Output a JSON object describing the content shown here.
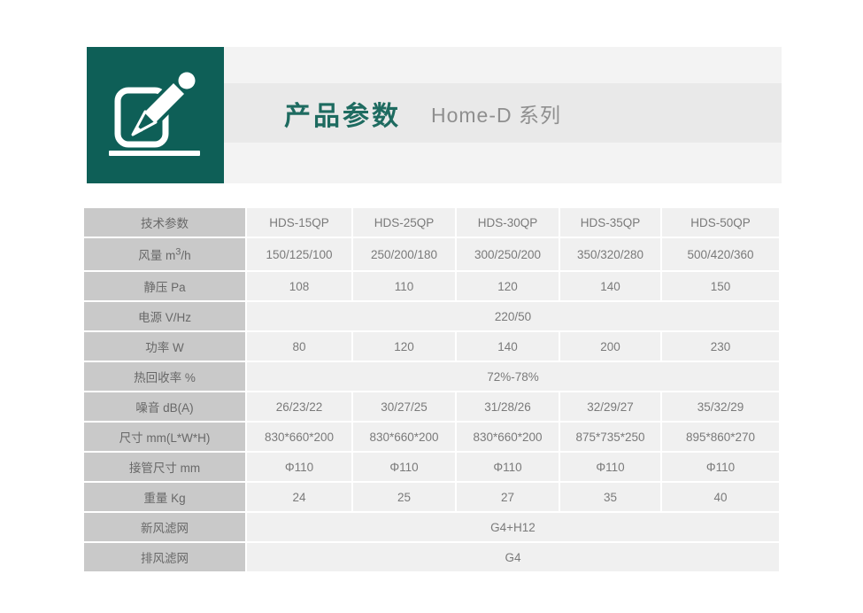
{
  "page": {
    "background": "#ffffff"
  },
  "header": {
    "icon": "edit-pencil-icon",
    "icon_tile_color": "#0E5F57",
    "title": "产品参数",
    "title_color": "#1E6B60",
    "subtitle": "Home-D 系列",
    "subtitle_color": "#8F8F8F",
    "banner_stripe_color": "#F3F3F3",
    "banner_mid_color": "#E9E9E9"
  },
  "table": {
    "columns": [
      "技术参数",
      "HDS-15QP",
      "HDS-25QP",
      "HDS-30QP",
      "HDS-35QP",
      "HDS-50QP"
    ],
    "rows": [
      {
        "label": "风量 m",
        "label_sup": "3",
        "label_suffix": "/h",
        "cells": [
          "150/125/100",
          "250/200/180",
          "300/250/200",
          "350/320/280",
          "500/420/360"
        ]
      },
      {
        "label": "静压 Pa",
        "cells": [
          "108",
          "110",
          "120",
          "140",
          "150"
        ]
      },
      {
        "label": "电源 V/Hz",
        "merged": "220/50"
      },
      {
        "label": "功率 W",
        "cells": [
          "80",
          "120",
          "140",
          "200",
          "230"
        ]
      },
      {
        "label": "热回收率 %",
        "merged": "72%-78%"
      },
      {
        "label": "噪音 dB(A)",
        "cells": [
          "26/23/22",
          "30/27/25",
          "31/28/26",
          "32/29/27",
          "35/32/29"
        ]
      },
      {
        "label": "尺寸 mm(L*W*H)",
        "cells": [
          "830*660*200",
          "830*660*200",
          "830*660*200",
          "875*735*250",
          "895*860*270"
        ]
      },
      {
        "label": "接管尺寸 mm",
        "cells": [
          "Φ110",
          "Φ110",
          "Φ110",
          "Φ110",
          "Φ110"
        ]
      },
      {
        "label": "重量 Kg",
        "cells": [
          "24",
          "25",
          "27",
          "35",
          "40"
        ]
      },
      {
        "label": "新风滤网",
        "merged": "G4+H12"
      },
      {
        "label": "排风滤网",
        "merged": "G4"
      }
    ],
    "label_bg": "#C9C9C9",
    "cell_bg": "#F0F0F0",
    "label_text_color": "#686868",
    "cell_text_color": "#7A7A7A"
  }
}
